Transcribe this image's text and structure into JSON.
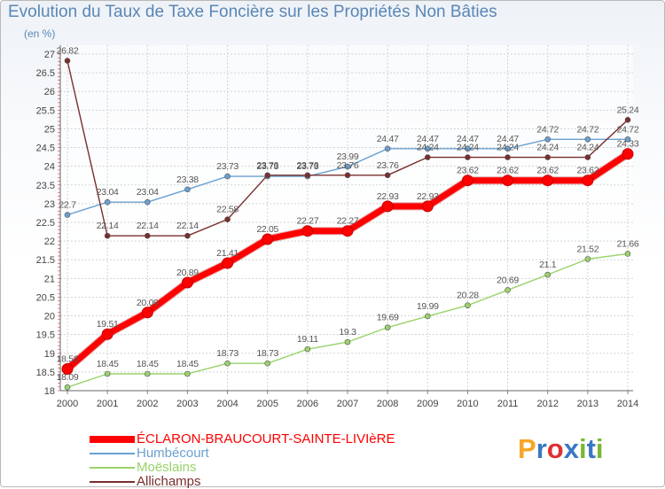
{
  "title": "Evolution du Taux de Taxe Foncière sur les Propriétés Non Bâties",
  "subtitle": "(en %)",
  "chart_data": {
    "type": "line",
    "title": "Evolution du Taux de Taxe Foncière sur les Propriétés Non Bâties",
    "ylabel": "(en %)",
    "xlabel": "",
    "ylim": [
      18,
      27
    ],
    "grid": true,
    "x": [
      "2000",
      "2001",
      "2002",
      "2003",
      "2004",
      "2005",
      "2006",
      "2007",
      "2008",
      "2009",
      "2010",
      "2011",
      "2012",
      "2013",
      "2014"
    ],
    "yticks": [
      "18",
      "18.5",
      "19",
      "19.5",
      "20",
      "20.5",
      "21",
      "21.5",
      "22",
      "22.5",
      "23",
      "23.5",
      "24",
      "24.5",
      "25",
      "25.5",
      "26",
      "26.5",
      "27"
    ],
    "series": [
      {
        "name": "ÉCLARON-BRAUCOURT-SAINTE-LIVIèRE",
        "color": "#ff0000",
        "values": [
          18.58,
          19.51,
          20.09,
          20.89,
          21.41,
          22.05,
          22.27,
          22.27,
          22.93,
          22.93,
          23.62,
          23.62,
          23.62,
          23.62,
          24.33
        ],
        "labels": [
          "18.58",
          "19.51",
          "20.09",
          "20.89",
          "21.41",
          "22.05",
          "22.27",
          "22.27",
          "22.93",
          "22.93",
          "23.62",
          "23.62",
          "23.62",
          "23.62",
          "24.33"
        ]
      },
      {
        "name": "Humbécourt",
        "color": "#6aa0d0",
        "values": [
          22.7,
          23.04,
          23.04,
          23.38,
          23.73,
          23.73,
          23.73,
          23.99,
          24.47,
          24.47,
          24.47,
          24.47,
          24.72,
          24.72,
          24.72
        ],
        "labels": [
          "22.7",
          "23.04",
          "23.04",
          "23.38",
          "23.73",
          "23.73",
          "23.73",
          "23.99",
          "24.47",
          "24.47",
          "24.47",
          "24.47",
          "24.72",
          "24.72",
          "24.72"
        ]
      },
      {
        "name": "Moëslains",
        "color": "#99d36b",
        "values": [
          18.09,
          18.45,
          18.45,
          18.45,
          18.73,
          18.73,
          19.11,
          19.3,
          19.69,
          19.99,
          20.28,
          20.69,
          21.1,
          21.52,
          21.66
        ],
        "labels": [
          "18.09",
          "18.45",
          "18.45",
          "18.45",
          "18.73",
          "18.73",
          "19.11",
          "19.3",
          "19.69",
          "19.99",
          "20.28",
          "20.69",
          "21.1",
          "21.52",
          "21.66"
        ]
      },
      {
        "name": "Allichamps",
        "color": "#7a2e2e",
        "values": [
          26.82,
          22.14,
          22.14,
          22.14,
          22.58,
          23.76,
          23.76,
          23.76,
          23.76,
          24.24,
          24.24,
          24.24,
          24.24,
          24.24,
          25.24
        ],
        "labels": [
          "26.82",
          "22.14",
          "22.14",
          "22.14",
          "22.58",
          "23.76",
          "23.76",
          "23.76",
          "23.76",
          "24.24",
          "24.24",
          "24.24",
          "24.24",
          "24.24",
          "25.24"
        ]
      }
    ]
  },
  "legend": {
    "items": [
      {
        "label": "ÉCLARON-BRAUCOURT-SAINTE-LIVIèRE",
        "color": "#ff0000"
      },
      {
        "label": "Humbécourt",
        "color": "#6aa0d0"
      },
      {
        "label": "Moëslains",
        "color": "#99d36b"
      },
      {
        "label": "Allichamps",
        "color": "#7a2e2e"
      }
    ]
  },
  "logo": {
    "letters": [
      "P",
      "r",
      "o",
      "x",
      "i",
      "t",
      "i"
    ],
    "colors": [
      "#f5a623",
      "#3a78c3",
      "#e03030",
      "#3a78c3",
      "#78b832",
      "#3a78c3",
      "#78b832"
    ]
  }
}
